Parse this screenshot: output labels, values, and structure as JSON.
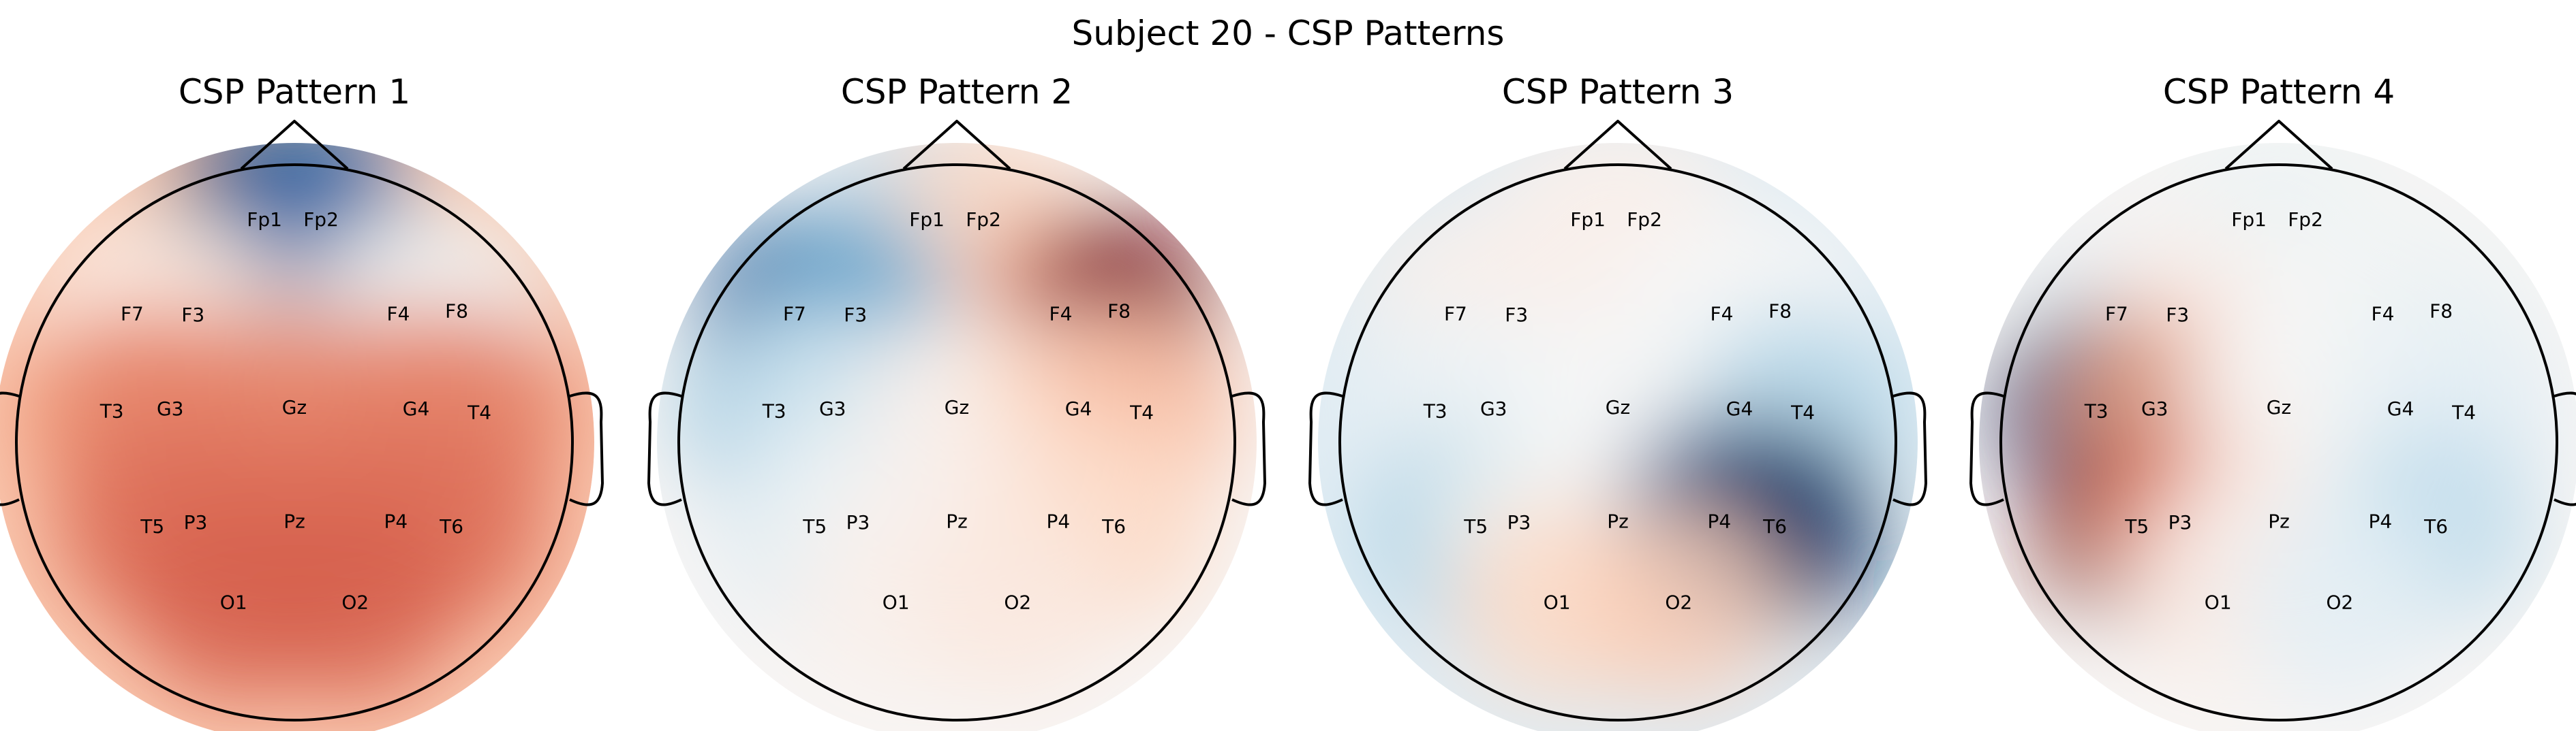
{
  "chart_data": {
    "type": "heatmap",
    "title": "Subject 20 - CSP Patterns",
    "colormap": "RdBu_r",
    "channels": [
      "Fp1",
      "Fp2",
      "F7",
      "F3",
      "F4",
      "F8",
      "T3",
      "G3",
      "Gz",
      "G4",
      "T4",
      "T5",
      "P3",
      "Pz",
      "P4",
      "T6",
      "O1",
      "O2"
    ],
    "panels": [
      {
        "title": "CSP Pattern 1",
        "values": [
          -0.95,
          -0.8,
          0.05,
          0.1,
          0.05,
          -0.05,
          0.45,
          0.5,
          0.5,
          0.5,
          0.5,
          0.55,
          0.55,
          0.55,
          0.55,
          0.55,
          0.6,
          0.6
        ]
      },
      {
        "title": "CSP Pattern 2",
        "values": [
          -0.3,
          0.2,
          -0.85,
          -0.5,
          0.4,
          0.95,
          -0.35,
          -0.2,
          0.05,
          0.2,
          0.3,
          -0.15,
          -0.05,
          0.05,
          0.1,
          0.2,
          0.05,
          0.1
        ]
      },
      {
        "title": "CSP Pattern 3",
        "values": [
          0.05,
          0.05,
          0.05,
          0.05,
          0.0,
          0.0,
          -0.1,
          -0.05,
          0.0,
          -0.05,
          -0.3,
          -0.4,
          -0.05,
          0.0,
          -0.9,
          -1.0,
          0.2,
          0.25
        ]
      },
      {
        "title": "CSP Pattern 4",
        "values": [
          -0.05,
          -0.05,
          -0.1,
          0.05,
          0.0,
          -0.05,
          -0.95,
          0.4,
          0.0,
          -0.05,
          -0.1,
          1.0,
          0.45,
          0.05,
          -0.05,
          -0.25,
          0.05,
          -0.1
        ]
      }
    ]
  }
}
